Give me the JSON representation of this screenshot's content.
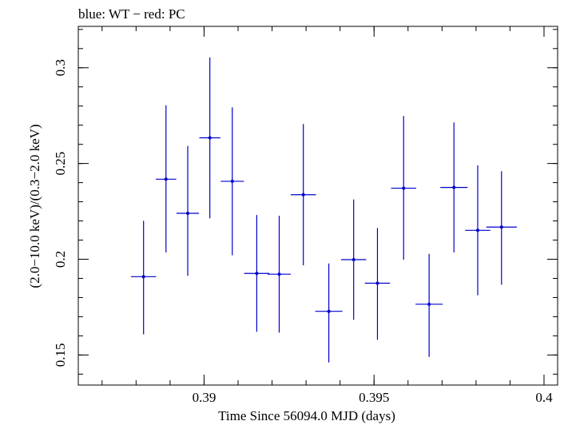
{
  "chart_data": {
    "type": "scatter",
    "title": "blue: WT − red: PC",
    "xlabel": "Time Since 56094.0 MJD (days)",
    "ylabel": "(2.0−10.0 keV)/(0.3−2.0 keV)",
    "xlim": [
      0.3863,
      0.4004
    ],
    "ylim": [
      0.1343,
      0.3216
    ],
    "xticks": [
      {
        "value": 0.39,
        "label": "0.39"
      },
      {
        "value": 0.395,
        "label": "0.395"
      },
      {
        "value": 0.4,
        "label": "0.4"
      }
    ],
    "yticks": [
      {
        "value": 0.15,
        "label": "0.15"
      },
      {
        "value": 0.2,
        "label": "0.2"
      },
      {
        "value": 0.25,
        "label": "0.25"
      },
      {
        "value": 0.3,
        "label": "0.3"
      }
    ],
    "xminor_step": 0.001,
    "yminor_step": 0.01,
    "grid": false,
    "color": "#0000cc",
    "series": [
      {
        "name": "WT",
        "points": [
          {
            "x": 0.38822,
            "xerr": 0.00037,
            "y": 0.1909,
            "yerr_lo": 0.0301,
            "yerr_hi": 0.0292
          },
          {
            "x": 0.38888,
            "xerr": 0.0003,
            "y": 0.2418,
            "yerr_lo": 0.0382,
            "yerr_hi": 0.0386
          },
          {
            "x": 0.38952,
            "xerr": 0.00033,
            "y": 0.224,
            "yerr_lo": 0.0326,
            "yerr_hi": 0.0352
          },
          {
            "x": 0.39017,
            "xerr": 0.00031,
            "y": 0.2634,
            "yerr_lo": 0.042,
            "yerr_hi": 0.042
          },
          {
            "x": 0.39083,
            "xerr": 0.00034,
            "y": 0.2407,
            "yerr_lo": 0.0386,
            "yerr_hi": 0.0386
          },
          {
            "x": 0.39155,
            "xerr": 0.00037,
            "y": 0.1926,
            "yerr_lo": 0.0305,
            "yerr_hi": 0.0305
          },
          {
            "x": 0.39221,
            "xerr": 0.00034,
            "y": 0.1922,
            "yerr_lo": 0.0305,
            "yerr_hi": 0.0305
          },
          {
            "x": 0.39292,
            "xerr": 0.00037,
            "y": 0.2337,
            "yerr_lo": 0.0369,
            "yerr_hi": 0.0369
          },
          {
            "x": 0.39367,
            "xerr": 0.0004,
            "y": 0.1728,
            "yerr_lo": 0.0267,
            "yerr_hi": 0.025
          },
          {
            "x": 0.3944,
            "xerr": 0.00037,
            "y": 0.1998,
            "yerr_lo": 0.0314,
            "yerr_hi": 0.0314
          },
          {
            "x": 0.3951,
            "xerr": 0.00037,
            "y": 0.1875,
            "yerr_lo": 0.0296,
            "yerr_hi": 0.0288
          },
          {
            "x": 0.39587,
            "xerr": 0.00037,
            "y": 0.2371,
            "yerr_lo": 0.0373,
            "yerr_hi": 0.0377
          },
          {
            "x": 0.39662,
            "xerr": 0.0004,
            "y": 0.1765,
            "yerr_lo": 0.0275,
            "yerr_hi": 0.0263
          },
          {
            "x": 0.39735,
            "xerr": 0.0004,
            "y": 0.2375,
            "yerr_lo": 0.0339,
            "yerr_hi": 0.0339
          },
          {
            "x": 0.39805,
            "xerr": 0.00037,
            "y": 0.2151,
            "yerr_lo": 0.0339,
            "yerr_hi": 0.0339
          },
          {
            "x": 0.39875,
            "xerr": 0.00045,
            "y": 0.2168,
            "yerr_lo": 0.0301,
            "yerr_hi": 0.0292
          }
        ]
      }
    ]
  }
}
